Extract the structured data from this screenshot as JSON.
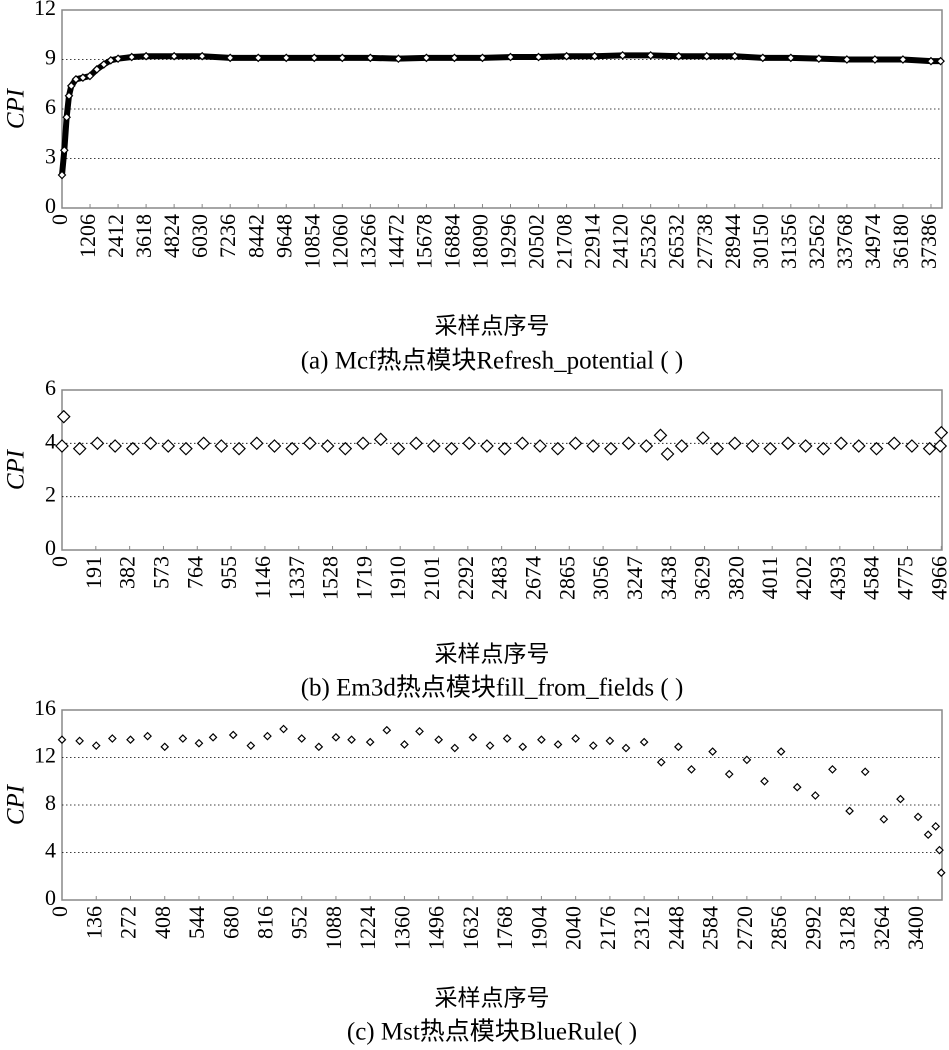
{
  "chart_data": [
    {
      "type": "line",
      "marker": "diamond",
      "ylabel": "CPI",
      "xlabel": "采样点序号",
      "caption": "(a) Mcf热点模块Refresh_potential ( )",
      "color": "#000000",
      "grid": true,
      "xlim": [
        0,
        37860
      ],
      "ylim": [
        0,
        12
      ],
      "yticks": [
        0,
        3,
        6,
        9,
        12
      ],
      "xticks": [
        0,
        1206,
        2412,
        3618,
        4824,
        6030,
        7236,
        8442,
        9648,
        10854,
        12060,
        13266,
        14472,
        15678,
        16884,
        18090,
        19296,
        20502,
        21708,
        22914,
        24120,
        25326,
        26532,
        27738,
        28944,
        30150,
        31356,
        32562,
        33768,
        34974,
        36180,
        37386
      ],
      "x": [
        0,
        100,
        200,
        300,
        400,
        600,
        900,
        1200,
        1500,
        1800,
        2100,
        2412,
        3000,
        3618,
        4824,
        6030,
        7236,
        8442,
        9648,
        10854,
        12060,
        13266,
        14472,
        15678,
        16884,
        18090,
        19296,
        20502,
        21708,
        22914,
        24120,
        25326,
        26532,
        27738,
        28944,
        30150,
        31356,
        32562,
        33768,
        34974,
        36180,
        37386,
        37800
      ],
      "values": [
        2.0,
        3.5,
        5.5,
        6.8,
        7.4,
        7.8,
        7.9,
        8.0,
        8.4,
        8.7,
        8.95,
        9.05,
        9.15,
        9.2,
        9.2,
        9.2,
        9.1,
        9.1,
        9.1,
        9.1,
        9.1,
        9.1,
        9.05,
        9.1,
        9.1,
        9.1,
        9.15,
        9.15,
        9.2,
        9.2,
        9.25,
        9.25,
        9.2,
        9.2,
        9.2,
        9.1,
        9.1,
        9.05,
        9.0,
        9.0,
        9.0,
        8.9,
        8.9
      ]
    },
    {
      "type": "scatter",
      "marker": "diamond",
      "ylabel": "CPI",
      "xlabel": "采样点序号",
      "caption": "(b) Em3d热点模块fill_from_fields ( )",
      "color": "#000000",
      "grid": true,
      "xlim": [
        0,
        4970
      ],
      "ylim": [
        0,
        6
      ],
      "yticks": [
        0,
        2,
        4,
        6
      ],
      "xticks": [
        0,
        191,
        382,
        573,
        764,
        955,
        1146,
        1337,
        1528,
        1719,
        1910,
        2101,
        2292,
        2483,
        2674,
        2865,
        3056,
        3247,
        3438,
        3629,
        3820,
        4011,
        4202,
        4393,
        4584,
        4775,
        4966
      ],
      "x": [
        0,
        10,
        100,
        200,
        300,
        400,
        500,
        600,
        700,
        800,
        900,
        1000,
        1100,
        1200,
        1300,
        1400,
        1500,
        1600,
        1700,
        1800,
        1900,
        2000,
        2100,
        2200,
        2300,
        2400,
        2500,
        2600,
        2700,
        2800,
        2900,
        3000,
        3100,
        3200,
        3300,
        3380,
        3420,
        3500,
        3620,
        3700,
        3800,
        3900,
        4000,
        4100,
        4200,
        4300,
        4400,
        4500,
        4600,
        4700,
        4800,
        4900,
        4960,
        4966
      ],
      "values": [
        3.9,
        5.0,
        3.8,
        4.0,
        3.9,
        3.8,
        4.0,
        3.9,
        3.8,
        4.0,
        3.9,
        3.8,
        4.0,
        3.9,
        3.8,
        4.0,
        3.9,
        3.8,
        4.0,
        4.15,
        3.8,
        4.0,
        3.9,
        3.8,
        4.0,
        3.9,
        3.8,
        4.0,
        3.9,
        3.8,
        4.0,
        3.9,
        3.8,
        4.0,
        3.9,
        4.3,
        3.6,
        3.9,
        4.2,
        3.8,
        4.0,
        3.9,
        3.8,
        4.0,
        3.9,
        3.8,
        4.0,
        3.9,
        3.8,
        4.0,
        3.9,
        3.8,
        3.9,
        4.4
      ]
    },
    {
      "type": "scatter",
      "marker": "diamond",
      "ylabel": "CPI",
      "xlabel": "采样点序号",
      "caption": "(c) Mst热点模块BlueRule( )",
      "color": "#000000",
      "grid": true,
      "xlim": [
        0,
        3495
      ],
      "ylim": [
        0,
        16
      ],
      "yticks": [
        0,
        4,
        8,
        12,
        16
      ],
      "xticks": [
        0,
        136,
        272,
        408,
        544,
        680,
        816,
        952,
        1088,
        1224,
        1360,
        1496,
        1632,
        1768,
        1904,
        2040,
        2176,
        2312,
        2448,
        2584,
        2720,
        2856,
        2992,
        3128,
        3264,
        3400
      ],
      "x": [
        0,
        70,
        136,
        200,
        272,
        340,
        408,
        480,
        544,
        600,
        680,
        750,
        816,
        880,
        952,
        1020,
        1088,
        1150,
        1224,
        1290,
        1360,
        1420,
        1496,
        1560,
        1632,
        1700,
        1768,
        1830,
        1904,
        1970,
        2040,
        2110,
        2176,
        2240,
        2312,
        2380,
        2448,
        2500,
        2584,
        2650,
        2720,
        2790,
        2856,
        2920,
        2992,
        3060,
        3128,
        3190,
        3264,
        3330,
        3400,
        3440,
        3470,
        3485,
        3492
      ],
      "values": [
        13.5,
        13.4,
        13.0,
        13.6,
        13.5,
        13.8,
        12.9,
        13.6,
        13.2,
        13.7,
        13.9,
        13.0,
        13.8,
        14.4,
        13.6,
        12.9,
        13.7,
        13.5,
        13.3,
        14.3,
        13.1,
        14.2,
        13.5,
        12.8,
        13.7,
        13.0,
        13.6,
        12.9,
        13.5,
        13.1,
        13.6,
        13.0,
        13.4,
        12.8,
        13.3,
        11.6,
        12.9,
        11.0,
        12.5,
        10.6,
        11.8,
        10.0,
        12.5,
        9.5,
        8.8,
        11.0,
        7.5,
        10.8,
        6.8,
        8.5,
        7.0,
        5.5,
        6.2,
        4.2,
        2.3
      ]
    }
  ]
}
